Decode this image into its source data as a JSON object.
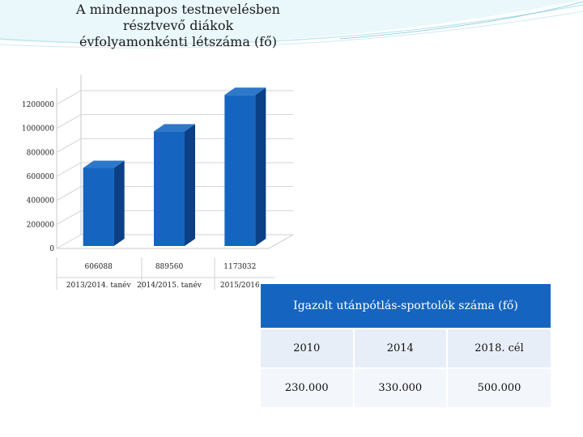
{
  "chart_data": {
    "type": "bar",
    "title": "A mindennapos testnevelésben résztvevő diákok évfolyamonkénti létszáma (fő)",
    "title_lines": [
      "A mindennapos testnevelésben",
      "résztvevő diákok",
      "évfolyamonkénti létszáma (fő)"
    ],
    "categories": [
      "2013/2014. tanév",
      "2014/2015. tanév",
      "2015/2016"
    ],
    "values": [
      606088,
      889560,
      1173032
    ],
    "value_labels": [
      "606088",
      "889560",
      "1173032"
    ],
    "y_ticks": [
      "0",
      "200000",
      "400000",
      "600000",
      "800000",
      "1000000",
      "1200000"
    ],
    "ylim": [
      0,
      1200000
    ],
    "grid": true,
    "bar_color": "#1565c0",
    "bar_side_color": "#0b3f86",
    "bar_top_color": "#2d78c8"
  },
  "table": {
    "title": "Igazolt utánpótlás-sportolók száma (fő)",
    "years": [
      "2010",
      "2014",
      "2018. cél"
    ],
    "values": [
      "230.000",
      "330.000",
      "500.000"
    ],
    "header_color": "#1565c0"
  }
}
